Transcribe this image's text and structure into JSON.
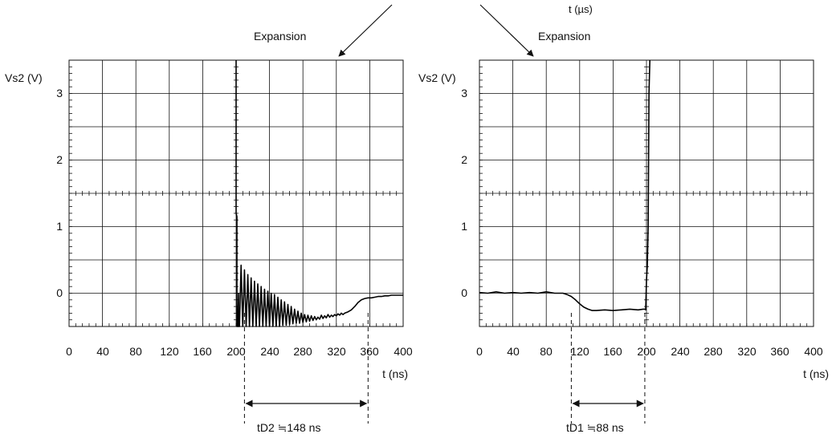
{
  "header": {
    "top_unit_label": "t (µs)"
  },
  "chart_data": [
    {
      "type": "line",
      "annotation": "Expansion",
      "ylabel": "Vs2 (V)",
      "xlabel": "t (ns)",
      "xlim": [
        0,
        400
      ],
      "ylim": [
        -0.5,
        3.5
      ],
      "x_ticks": [
        "0",
        "40",
        "80",
        "120",
        "160",
        "200",
        "240",
        "280",
        "320",
        "360",
        "400"
      ],
      "y_ticks": [
        "0",
        "1",
        "2",
        "3"
      ],
      "grid": true,
      "series": [
        {
          "x": [
            200,
            200,
            201,
            201,
            202,
            202,
            203,
            203,
            204,
            206,
            208,
            210,
            212,
            214,
            216,
            218,
            220,
            222,
            224,
            226,
            228,
            230,
            232,
            234,
            236,
            238,
            240,
            242,
            244,
            246,
            248,
            250,
            252,
            254,
            256,
            258,
            260,
            262,
            264,
            266,
            268,
            270,
            272,
            274,
            276,
            278,
            280,
            282,
            284,
            286,
            288,
            290,
            292,
            294,
            296,
            298,
            300,
            302,
            304,
            306,
            308,
            310,
            312,
            314,
            316,
            318,
            320,
            322,
            324,
            326,
            328,
            330,
            334,
            338,
            342,
            346,
            350,
            354,
            358,
            362,
            366,
            370,
            374,
            378,
            382,
            386,
            390,
            394,
            398,
            400
          ],
          "y": [
            3.5,
            1.2,
            1.15,
            -0.5,
            -0.5,
            -0.5,
            0.0,
            -0.5,
            -0.5,
            0.42,
            -0.5,
            0.35,
            -0.5,
            0.28,
            -0.5,
            0.23,
            -0.5,
            0.18,
            -0.5,
            0.14,
            -0.5,
            0.1,
            -0.5,
            0.06,
            -0.5,
            0.03,
            -0.5,
            0.0,
            -0.5,
            -0.02,
            -0.5,
            -0.06,
            -0.5,
            -0.1,
            -0.48,
            -0.13,
            -0.48,
            -0.17,
            -0.47,
            -0.2,
            -0.46,
            -0.24,
            -0.45,
            -0.27,
            -0.45,
            -0.3,
            -0.44,
            -0.32,
            -0.43,
            -0.33,
            -0.42,
            -0.34,
            -0.41,
            -0.35,
            -0.4,
            -0.36,
            -0.39,
            -0.33,
            -0.38,
            -0.34,
            -0.37,
            -0.32,
            -0.36,
            -0.33,
            -0.35,
            -0.32,
            -0.34,
            -0.31,
            -0.33,
            -0.3,
            -0.32,
            -0.3,
            -0.28,
            -0.25,
            -0.2,
            -0.14,
            -0.1,
            -0.08,
            -0.07,
            -0.07,
            -0.06,
            -0.05,
            -0.05,
            -0.04,
            -0.04,
            -0.03,
            -0.03,
            -0.03,
            -0.03,
            -0.03
          ]
        }
      ],
      "markers": {
        "start": 210,
        "end": 358
      },
      "delay_label": "tD2 ≒148 ns"
    },
    {
      "type": "line",
      "annotation": "Expansion",
      "ylabel": "Vs2 (V)",
      "xlabel": "t (ns)",
      "xlim": [
        0,
        400
      ],
      "ylim": [
        -0.5,
        3.5
      ],
      "x_ticks": [
        "0",
        "40",
        "80",
        "120",
        "160",
        "200",
        "240",
        "280",
        "320",
        "360",
        "400"
      ],
      "y_ticks": [
        "0",
        "1",
        "2",
        "3"
      ],
      "grid": true,
      "series": [
        {
          "x": [
            0,
            10,
            20,
            30,
            40,
            50,
            60,
            70,
            80,
            90,
            100,
            105,
            110,
            115,
            120,
            125,
            130,
            135,
            140,
            150,
            160,
            170,
            180,
            190,
            196,
            198,
            199,
            200,
            201,
            202,
            203,
            204
          ],
          "y": [
            0.01,
            0.0,
            0.02,
            0.0,
            0.01,
            0.0,
            0.01,
            0.0,
            0.02,
            0.0,
            0.0,
            -0.02,
            -0.05,
            -0.1,
            -0.16,
            -0.21,
            -0.24,
            -0.26,
            -0.26,
            -0.25,
            -0.26,
            -0.25,
            -0.24,
            -0.25,
            -0.24,
            -0.24,
            -0.25,
            0.2,
            0.4,
            1.0,
            3.0,
            3.5
          ]
        }
      ],
      "markers": {
        "start": 110,
        "end": 198
      },
      "delay_label": "tD1 ≒88 ns"
    }
  ]
}
